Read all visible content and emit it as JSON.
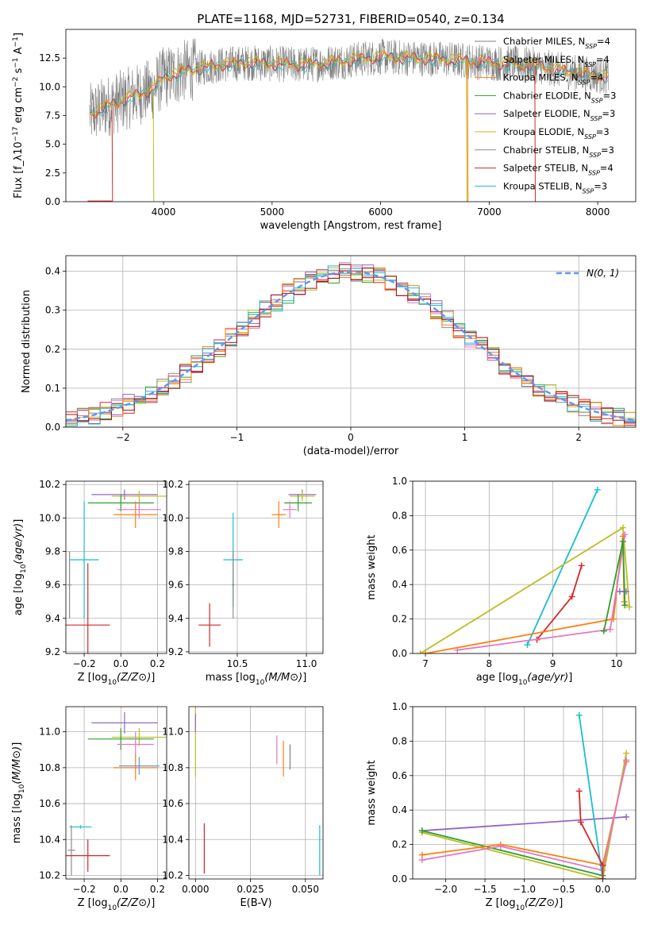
{
  "figure_title": "PLATE=1168, MJD=52731, FIBERID=0540, z=0.134",
  "colors": {
    "chabrier_miles": "#7f7f7f",
    "salpeter_miles": "#e377c2",
    "kroupa_miles": "#ff7f0e",
    "chabrier_elodie": "#2ca02c",
    "salpeter_elodie": "#9467bd",
    "kroupa_elodie": "#bcbd22",
    "chabrier_stelib": "#8c8c8c",
    "salpeter_stelib": "#d62728",
    "kroupa_stelib": "#17becf",
    "normal": "#6495ed",
    "mean_spectrum": "#ff7f0e",
    "stelib_chabrier_diag": "#a01010",
    "stelib_kroupa_diag": "#7ecfe0"
  },
  "legend_labels": [
    "Chabrier MILES, N_SSP=4",
    "Salpeter MILES, N_SSP=4",
    "Kroupa MILES, N_SSP=4",
    "Chabrier ELODIE, N_SSP=3",
    "Salpeter ELODIE, N_SSP=3",
    "Kroupa ELODIE, N_SSP=3",
    "Chabrier STELIB, N_SSP=3",
    "Salpeter STELIB, N_SSP=4",
    "Kroupa STELIB, N_SSP=3"
  ],
  "chart_data": [
    {
      "id": "spectrum",
      "type": "line",
      "xlabel": "wavelength [Angstrom, rest frame]",
      "ylabel": "Flux [f_λ10^-17 erg cm^-2 s^-1 A^-1]",
      "xlim": [
        3100,
        8350
      ],
      "ylim": [
        0,
        15
      ],
      "xticks": [
        4000,
        5000,
        6000,
        7000,
        8000
      ],
      "yticks": [
        "0.0",
        "2.5",
        "5.0",
        "7.5",
        "10.0",
        "12.5"
      ],
      "continuum": {
        "x": [
          3300,
          3500,
          3700,
          3900,
          4000,
          4200,
          4500,
          4800,
          5000,
          5300,
          5600,
          6000,
          6300,
          6600,
          7000,
          7400,
          7800,
          8100
        ],
        "y": [
          7.5,
          8.4,
          9.1,
          9.8,
          10.8,
          11.4,
          11.9,
          12.1,
          12.0,
          11.9,
          12.2,
          12.6,
          12.5,
          12.4,
          12.1,
          11.9,
          11.2,
          10.9
        ]
      },
      "legend_position": "top-right"
    },
    {
      "id": "residuals",
      "type": "histogram",
      "xlabel": "(data-model)/error",
      "ylabel": "Normed distribution",
      "xlim": [
        -2.5,
        2.5
      ],
      "ylim": [
        0,
        0.44
      ],
      "xticks": [
        -2,
        -1,
        0,
        1,
        2
      ],
      "yticks": [
        0.0,
        0.1,
        0.2,
        0.3,
        0.4
      ],
      "bin_width": 0.1,
      "normal_label": "N(0, 1)",
      "legend_position": "top-right"
    },
    {
      "id": "age_vs_Z",
      "type": "errorbar",
      "xlabel": "Z [log10(Z/Z⊙)]",
      "ylabel": "age  [log10(age/yr)]",
      "xlim": [
        -0.3,
        0.25
      ],
      "ylim": [
        9.19,
        10.22
      ],
      "xticks": [
        -0.2,
        0.0,
        0.2
      ],
      "yticks": [
        9.2,
        9.4,
        9.6,
        9.8,
        10.0,
        10.2
      ],
      "points": [
        {
          "m": "salpeter_elodie",
          "x": 0.02,
          "xerr": 0.18,
          "y": 10.14,
          "yerr": 0.03
        },
        {
          "m": "kroupa_elodie",
          "x": 0.1,
          "xerr": 0.15,
          "y": 10.13,
          "yerr": 0.03
        },
        {
          "m": "chabrier_elodie",
          "x": 0.0,
          "xerr": 0.18,
          "y": 10.09,
          "yerr": 0.05
        },
        {
          "m": "kroupa_miles",
          "x": 0.08,
          "xerr": 0.12,
          "y": 10.02,
          "yerr": 0.08
        },
        {
          "m": "salpeter_miles",
          "x": 0.1,
          "xerr": 0.12,
          "y": 10.05,
          "yerr": 0.05
        },
        {
          "m": "kroupa_stelib",
          "x": -0.2,
          "xerr": 0.08,
          "y": 9.75,
          "yerr": 0.35
        },
        {
          "m": "chabrier_stelib",
          "x": -0.28,
          "xerr": 0.01,
          "y": 9.6,
          "yerr": 0.2
        },
        {
          "m": "salpeter_stelib",
          "x": -0.18,
          "xerr": 0.12,
          "y": 9.36,
          "yerr": 0.37
        }
      ]
    },
    {
      "id": "age_vs_mass",
      "type": "errorbar",
      "xlabel": "mass [log10(M/M⊙)]",
      "ylabel": "",
      "xlim": [
        10.15,
        11.12
      ],
      "ylim": [
        9.19,
        10.22
      ],
      "xticks": [
        10.5,
        11.0
      ],
      "yticks": [
        9.2,
        9.4,
        9.6,
        9.8,
        10.0,
        10.2
      ],
      "points": [
        {
          "m": "salpeter_elodie",
          "x": 10.97,
          "xerr": 0.1,
          "y": 10.14,
          "yerr": 0.03
        },
        {
          "m": "kroupa_elodie",
          "x": 10.97,
          "xerr": 0.09,
          "y": 10.13,
          "yerr": 0.03
        },
        {
          "m": "chabrier_elodie",
          "x": 10.94,
          "xerr": 0.1,
          "y": 10.09,
          "yerr": 0.05
        },
        {
          "m": "kroupa_miles",
          "x": 10.8,
          "xerr": 0.05,
          "y": 10.02,
          "yerr": 0.08
        },
        {
          "m": "salpeter_miles",
          "x": 10.88,
          "xerr": 0.05,
          "y": 10.05,
          "yerr": 0.05
        },
        {
          "m": "kroupa_stelib",
          "x": 10.47,
          "xerr": 0.07,
          "y": 9.75,
          "yerr": 0.28
        },
        {
          "m": "chabrier_stelib",
          "x": 10.47,
          "xerr": 0.01,
          "y": 9.6,
          "yerr": 0.2
        },
        {
          "m": "salpeter_stelib",
          "x": 10.3,
          "xerr": 0.08,
          "y": 9.36,
          "yerr": 0.13
        }
      ]
    },
    {
      "id": "mass_vs_Z",
      "type": "errorbar",
      "xlabel": "Z [log10(Z/Z⊙)]",
      "ylabel": "mass [log10(M/M⊙)]",
      "xlim": [
        -0.3,
        0.25
      ],
      "ylim": [
        10.18,
        11.14
      ],
      "xticks": [
        -0.2,
        0.0,
        0.2
      ],
      "yticks": [
        10.2,
        10.4,
        10.6,
        10.8,
        11.0
      ],
      "points": [
        {
          "m": "salpeter_elodie",
          "x": 0.02,
          "xerr": 0.18,
          "y": 11.05,
          "yerr": 0.06
        },
        {
          "m": "kroupa_elodie",
          "x": 0.1,
          "xerr": 0.15,
          "y": 10.97,
          "yerr": 0.05
        },
        {
          "m": "chabrier_elodie",
          "x": 0.0,
          "xerr": 0.18,
          "y": 10.96,
          "yerr": 0.06
        },
        {
          "m": "salpeter_miles",
          "x": 0.08,
          "xerr": 0.1,
          "y": 10.93,
          "yerr": 0.07
        },
        {
          "m": "kroupa_miles",
          "x": 0.08,
          "xerr": 0.12,
          "y": 10.8,
          "yerr": 0.07
        },
        {
          "m": "normal",
          "x": 0.1,
          "xerr": 0.11,
          "y": 10.81,
          "yerr": 0.05
        },
        {
          "m": "kroupa_stelib",
          "x": -0.22,
          "xerr": 0.06,
          "y": 10.47,
          "yerr": 0.01
        },
        {
          "m": "chabrier_stelib",
          "x": -0.27,
          "xerr": 0.02,
          "y": 10.34,
          "yerr": 0.14
        },
        {
          "m": "salpeter_stelib",
          "x": -0.18,
          "xerr": 0.12,
          "y": 10.31,
          "yerr": 0.09
        }
      ]
    },
    {
      "id": "mass_vs_EBV",
      "type": "errorbar",
      "xlabel": "E(B-V)",
      "ylabel": "",
      "xlim": [
        -0.003,
        0.058
      ],
      "ylim": [
        10.18,
        11.14
      ],
      "xticks": [
        "0.000",
        "0.025",
        "0.050"
      ],
      "yticks": [
        10.2,
        10.4,
        10.6,
        10.8,
        11.0
      ],
      "points": [
        {
          "m": "kroupa_elodie",
          "x": 0.0,
          "xerr": 0,
          "y": 10.95,
          "yerr": 0.2
        },
        {
          "m": "salpeter_elodie",
          "x": 0.0,
          "xerr": 0,
          "y": 11.05,
          "yerr": 0.05
        },
        {
          "m": "salpeter_stelib",
          "x": 0.004,
          "xerr": 0,
          "y": 10.35,
          "yerr": 0.14
        },
        {
          "m": "salpeter_miles",
          "x": 0.037,
          "xerr": 0,
          "y": 10.9,
          "yerr": 0.08
        },
        {
          "m": "kroupa_miles",
          "x": 0.04,
          "xerr": 0,
          "y": 10.85,
          "yerr": 0.1
        },
        {
          "m": "chabrier_miles",
          "x": 0.043,
          "xerr": 0,
          "y": 10.86,
          "yerr": 0.07
        },
        {
          "m": "kroupa_stelib",
          "x": 0.0565,
          "xerr": 0,
          "y": 10.34,
          "yerr": 0.14
        }
      ]
    },
    {
      "id": "massweight_vs_age",
      "type": "line",
      "xlabel": "age  [log10(age/yr)]",
      "ylabel": "mass weight",
      "xlim": [
        6.8,
        10.3
      ],
      "ylim": [
        0,
        1.0
      ],
      "xticks": [
        7,
        8,
        9,
        10
      ],
      "yticks": [
        "0.0",
        "0.2",
        "0.4",
        "0.6",
        "0.8",
        "1.0"
      ],
      "series": [
        {
          "m": "kroupa_stelib",
          "x": [
            8.6,
            9.7
          ],
          "y": [
            0.05,
            0.95
          ]
        },
        {
          "m": "kroupa_elodie",
          "x": [
            6.92,
            10.1,
            10.2
          ],
          "y": [
            0.0,
            0.73,
            0.27
          ]
        },
        {
          "m": "salpeter_stelib",
          "x": [
            8.75,
            9.3,
            9.45
          ],
          "y": [
            0.08,
            0.33,
            0.51
          ]
        },
        {
          "m": "kroupa_miles",
          "x": [
            7.0,
            9.95,
            10.1,
            10.12
          ],
          "y": [
            0.0,
            0.2,
            0.68,
            0.3
          ]
        },
        {
          "m": "salpeter_miles",
          "x": [
            7.5,
            9.9,
            10.13
          ],
          "y": [
            0.02,
            0.14,
            0.69
          ]
        },
        {
          "m": "salpeter_elodie",
          "x": [
            10.05,
            10.15
          ],
          "y": [
            0.36,
            0.36
          ]
        },
        {
          "m": "chabrier_elodie",
          "x": [
            9.8,
            10.1,
            10.13
          ],
          "y": [
            0.13,
            0.65,
            0.28
          ]
        }
      ]
    },
    {
      "id": "massweight_vs_Z",
      "type": "line",
      "xlabel": "Z [log10(Z/Z⊙)]",
      "ylabel": "mass weight",
      "xlim": [
        -2.42,
        0.42
      ],
      "ylim": [
        0,
        1.0
      ],
      "xticks": [
        "−2.0",
        "−1.5",
        "−1.0",
        "−0.5",
        "0.0"
      ],
      "yticks": [
        "0.0",
        "0.2",
        "0.4",
        "0.6",
        "0.8",
        "1.0"
      ],
      "series": [
        {
          "m": "salpeter_elodie",
          "x": [
            -2.3,
            0.3
          ],
          "y": [
            0.28,
            0.36
          ]
        },
        {
          "m": "kroupa_elodie",
          "x": [
            -2.3,
            0.0,
            0.3
          ],
          "y": [
            0.27,
            0.0,
            0.73
          ]
        },
        {
          "m": "chabrier_elodie",
          "x": [
            -2.3,
            0.0
          ],
          "y": [
            0.28,
            0.02
          ]
        },
        {
          "m": "kroupa_miles",
          "x": [
            -2.3,
            -1.3,
            0.0,
            0.3
          ],
          "y": [
            0.14,
            0.2,
            0.08,
            0.68
          ]
        },
        {
          "m": "salpeter_miles",
          "x": [
            -2.3,
            -1.3,
            0.0,
            0.3
          ],
          "y": [
            0.11,
            0.19,
            0.05,
            0.69
          ]
        },
        {
          "m": "kroupa_stelib",
          "x": [
            -0.3,
            0.0
          ],
          "y": [
            0.95,
            0.0
          ]
        },
        {
          "m": "salpeter_stelib",
          "x": [
            -0.3,
            -0.28,
            0.0,
            0.0
          ],
          "y": [
            0.51,
            0.33,
            0.08,
            0.0
          ]
        }
      ]
    }
  ]
}
